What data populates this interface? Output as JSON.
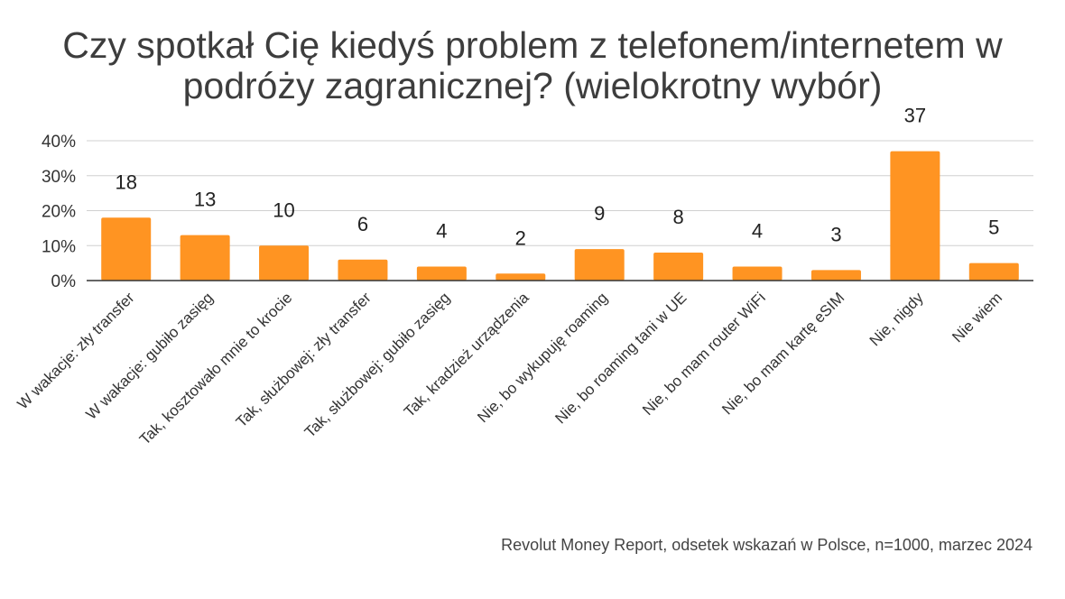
{
  "chart_data": {
    "type": "bar",
    "title_lines": [
      "Czy spotkał Cię kiedyś problem z telefonem/internetem w",
      "podróży zagranicznej? (wielokrotny wybór)"
    ],
    "categories": [
      "W wakacje: zły transfer",
      "W wakacje: gubiło zasięg",
      "Tak, kosztowało mnie to krocie",
      "Tak, służbowej: zły transfer",
      "Tak, służbowej: gubiło zasięg",
      "Tak, kradzież urządzenia",
      "Nie, bo wykupuję roaming",
      "Nie, bo roaming tani w UE",
      "Nie, bo mam router WiFi",
      "Nie, bo mam kartę eSIM",
      "Nie, nigdy",
      "Nie wiem"
    ],
    "values": [
      18,
      13,
      10,
      6,
      4,
      2,
      9,
      8,
      4,
      3,
      37,
      5
    ],
    "data_labels": [
      "18",
      "13",
      "10",
      "6",
      "4",
      "2",
      "9",
      "8",
      "4",
      "3",
      "37",
      "5"
    ],
    "yticks": [
      0,
      10,
      20,
      30,
      40
    ],
    "ytick_labels": [
      "0%",
      "10%",
      "20%",
      "30%",
      "40%"
    ],
    "ylim": [
      0,
      40
    ],
    "grid": true,
    "bar_color": "#FF9422",
    "grid_color": "#d0d0d0",
    "axis_color": "#333333"
  },
  "source_note": "Revolut Money Report, odsetek wskazań w Polsce, n=1000, marzec 2024"
}
